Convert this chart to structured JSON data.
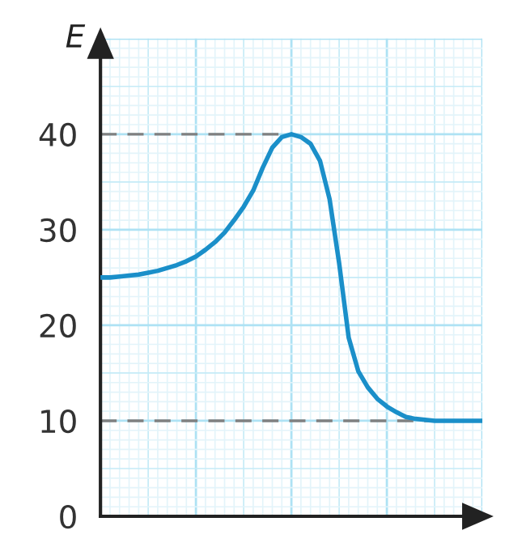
{
  "chart_data": {
    "type": "line",
    "ylabel": "E",
    "ylim": [
      0,
      50
    ],
    "categories": [
      null,
      null,
      null,
      null,
      null,
      null,
      null,
      null,
      null,
      null,
      null,
      null,
      null,
      null,
      null,
      null,
      null,
      null,
      null,
      null,
      null,
      null,
      null,
      null,
      null,
      null,
      null,
      null,
      null,
      null,
      null,
      null,
      null,
      null,
      null,
      null,
      null,
      null,
      null,
      null,
      null
    ],
    "yticks": [
      0,
      10,
      20,
      30,
      40
    ],
    "grid": true,
    "series": [
      {
        "color": "#1a8fc9",
        "values": [
          25,
          25.0,
          25.1,
          25.2,
          25.3,
          25.5,
          25.7,
          26.0,
          26.3,
          26.7,
          27.2,
          27.9,
          28.7,
          29.7,
          31.0,
          32.4,
          34.1,
          36.5,
          38.6,
          39.7,
          40,
          39.7,
          39.0,
          37.2,
          33.2,
          26.5,
          18.7,
          15.2,
          13.5,
          12.3,
          11.5,
          10.9,
          10.4,
          10.2,
          10.1,
          10,
          10,
          10,
          10,
          10,
          10
        ]
      }
    ],
    "ref_lines": [
      {
        "axis": "y",
        "value": 40,
        "color": "#808080",
        "line_style": "dashed"
      },
      {
        "axis": "y",
        "value": 10,
        "color": "#808080",
        "line_style": "dashed"
      }
    ]
  }
}
